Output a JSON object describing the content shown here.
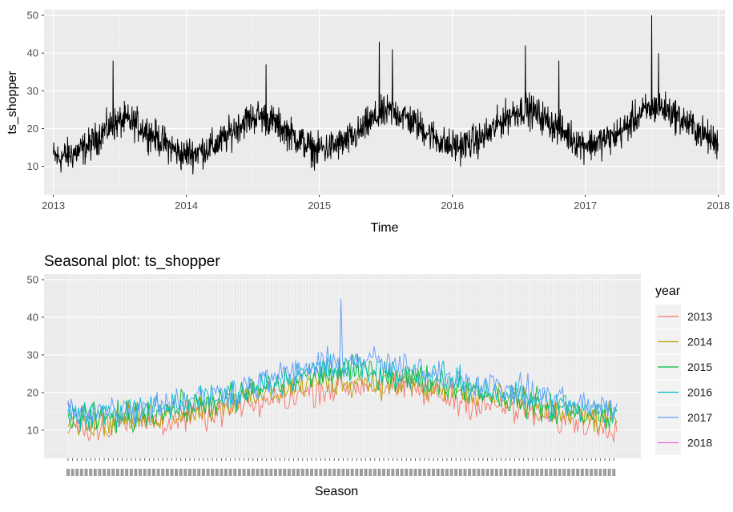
{
  "chart_data": [
    {
      "type": "line",
      "title": "",
      "xlabel": "Time",
      "ylabel": "ts_shopper",
      "x_ticks": [
        "2013",
        "2014",
        "2015",
        "2016",
        "2017",
        "2018"
      ],
      "y_ticks": [
        "10",
        "20",
        "30",
        "40",
        "50"
      ],
      "xlim": [
        2012.93,
        2018.05
      ],
      "ylim": [
        2.5,
        51.5
      ],
      "grid": true,
      "series": [
        {
          "color": "#000000",
          "seasonal_mean_by_month": [
            14,
            15,
            16,
            18,
            21,
            23,
            24,
            23,
            21,
            19,
            17,
            15
          ],
          "year_level_offset": [
            -3,
            -1,
            1,
            2,
            3
          ],
          "x_start": 2013.0,
          "x_end": 2018.0,
          "spikes": [
            [
              2013.45,
              38
            ],
            [
              2014.6,
              37
            ],
            [
              2015.45,
              43
            ],
            [
              2015.55,
              41
            ],
            [
              2016.55,
              42
            ],
            [
              2016.8,
              38
            ],
            [
              2017.5,
              50
            ],
            [
              2017.55,
              40
            ]
          ]
        }
      ]
    },
    {
      "type": "line",
      "title": "Seasonal plot: ts_shopper",
      "xlabel": "Season",
      "ylabel": "",
      "y_ticks": [
        "10",
        "20",
        "30",
        "40",
        "50"
      ],
      "ylim": [
        2.5,
        51.5
      ],
      "grid": true,
      "legend": {
        "title": "year",
        "position": "right",
        "entries": [
          {
            "name": "2013",
            "color": "#F8766D"
          },
          {
            "name": "2014",
            "color": "#B79F00"
          },
          {
            "name": "2015",
            "color": "#00BA38"
          },
          {
            "name": "2016",
            "color": "#00BFC4"
          },
          {
            "name": "2017",
            "color": "#619CFF"
          },
          {
            "name": "2018",
            "color": "#F564E3"
          }
        ]
      },
      "series": [
        {
          "name": "2013",
          "color": "#F8766D",
          "seasonal_mean_by_month": [
            11,
            12,
            13,
            15,
            18,
            21,
            22,
            21,
            18,
            16,
            13,
            12
          ]
        },
        {
          "name": "2014",
          "color": "#B79F00",
          "seasonal_mean_by_month": [
            12,
            13,
            15,
            17,
            20,
            23,
            23,
            22,
            20,
            18,
            15,
            13
          ]
        },
        {
          "name": "2015",
          "color": "#00BA38",
          "seasonal_mean_by_month": [
            13,
            14,
            16,
            18,
            22,
            25,
            26,
            24,
            22,
            19,
            16,
            14
          ]
        },
        {
          "name": "2016",
          "color": "#00BFC4",
          "seasonal_mean_by_month": [
            14,
            15,
            17,
            19,
            23,
            26,
            26,
            25,
            23,
            20,
            17,
            15
          ]
        },
        {
          "name": "2017",
          "color": "#619CFF",
          "seasonal_mean_by_month": [
            15,
            16,
            18,
            20,
            24,
            27,
            29,
            26,
            24,
            21,
            19,
            16
          ]
        },
        {
          "name": "2018",
          "color": "#F564E3",
          "seasonal_mean_by_month": [
            17
          ]
        }
      ]
    }
  ]
}
